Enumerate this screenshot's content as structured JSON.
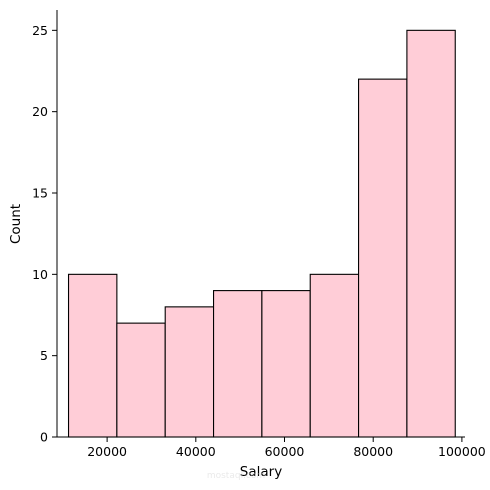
{
  "chart_data": {
    "type": "histogram",
    "title": "",
    "xlabel": "Salary",
    "ylabel": "Count",
    "xlim": [
      8700,
      100700
    ],
    "ylim": [
      0,
      26.25
    ],
    "bin_edges": [
      11300,
      22200,
      33100,
      44000,
      54900,
      65800,
      76700,
      87600,
      98500
    ],
    "values": [
      10,
      7,
      8,
      9,
      9,
      10,
      22,
      25
    ],
    "xticks": [
      20000,
      40000,
      60000,
      80000,
      100000
    ],
    "xtick_labels": [
      "20000",
      "40000",
      "60000",
      "80000",
      "100000"
    ],
    "yticks": [
      0,
      5,
      10,
      15,
      20,
      25
    ],
    "ytick_labels": [
      "0",
      "5",
      "10",
      "15",
      "20",
      "25"
    ],
    "bar_color": "#ffcdd7",
    "edge_color": "#000000",
    "grid": false
  },
  "watermark": {
    "text": "mostaql.com"
  }
}
